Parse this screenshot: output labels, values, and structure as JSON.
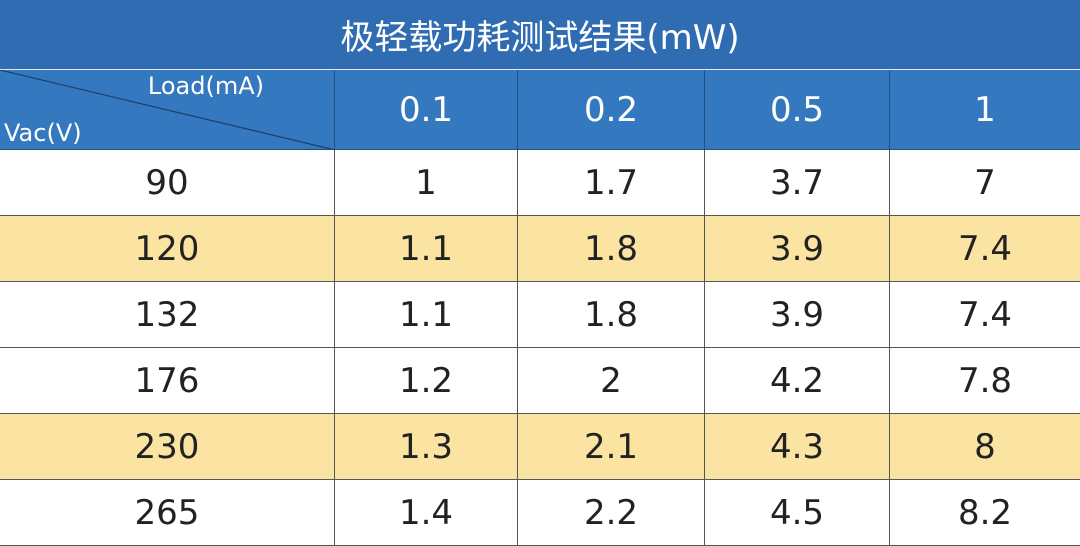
{
  "table": {
    "title": "极轻载功耗测试结果(mW)",
    "corner": {
      "column_label": "Load(mA)",
      "row_label": "Vac(V)"
    },
    "columns": [
      "0.1",
      "0.2",
      "0.5",
      "1"
    ],
    "rows": [
      [
        "90",
        "1",
        "1.7",
        "3.7",
        "7"
      ],
      [
        "120",
        "1.1",
        "1.8",
        "3.9",
        "7.4"
      ],
      [
        "132",
        "1.1",
        "1.8",
        "3.9",
        "7.4"
      ],
      [
        "176",
        "1.2",
        "2",
        "4.2",
        "7.8"
      ],
      [
        "230",
        "1.3",
        "2.1",
        "4.3",
        "8"
      ],
      [
        "265",
        "1.4",
        "2.2",
        "4.5",
        "8.2"
      ]
    ]
  }
}
